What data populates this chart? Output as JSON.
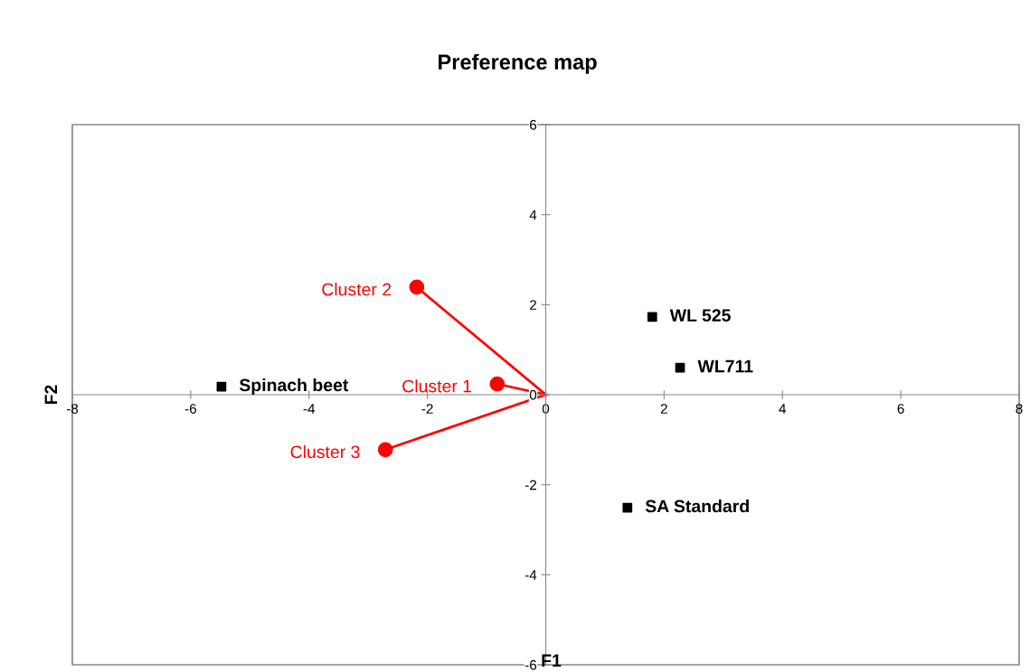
{
  "chart_data": {
    "type": "scatter",
    "title": "Preference map",
    "xlabel": "F1",
    "ylabel": "F2",
    "xlim": [
      -8,
      8
    ],
    "ylim": [
      -6,
      6
    ],
    "xticks": [
      -8,
      -6,
      -4,
      -2,
      0,
      2,
      4,
      6,
      8
    ],
    "yticks": [
      -6,
      -4,
      -2,
      0,
      2,
      4,
      6
    ],
    "grid": false,
    "legend": false,
    "marker": "square",
    "series": [
      {
        "name": "Spinach beet",
        "color": "#000000",
        "x": [
          -5.48
        ],
        "values": [
          0.18
        ]
      },
      {
        "name": "WL 525",
        "color": "#000000",
        "x": [
          1.8
        ],
        "values": [
          1.73
        ]
      },
      {
        "name": "WL711",
        "color": "#000000",
        "x": [
          2.27
        ],
        "values": [
          0.6
        ]
      },
      {
        "name": "SA Standard",
        "color": "#000000",
        "x": [
          1.38
        ],
        "values": [
          -2.51
        ]
      },
      {
        "name": "Cluster 1",
        "type": "line",
        "marker": "circle",
        "color": "#ff0000",
        "x": [
          0,
          -0.82
        ],
        "values": [
          0,
          0.24
        ]
      },
      {
        "name": "Cluster 2",
        "type": "line",
        "marker": "circle",
        "color": "#ff0000",
        "x": [
          0,
          -2.18
        ],
        "values": [
          0,
          2.39
        ]
      },
      {
        "name": "Cluster 3",
        "type": "line",
        "marker": "circle",
        "color": "#ff0000",
        "x": [
          0,
          -2.71
        ],
        "values": [
          0,
          -1.22
        ]
      }
    ]
  }
}
